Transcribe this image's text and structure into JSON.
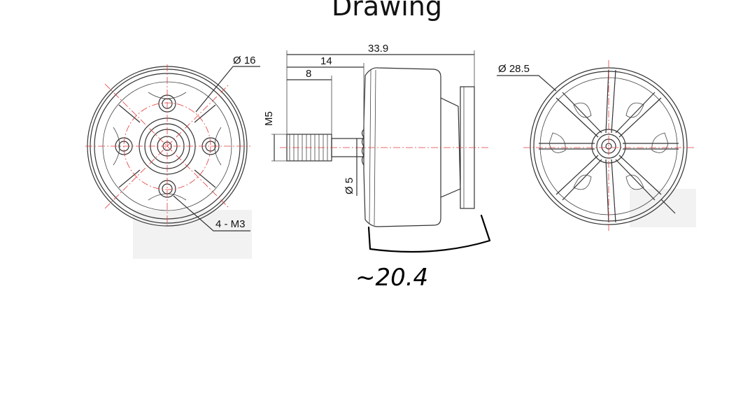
{
  "title": "Drawing",
  "labels": {
    "front_diameter": "Ø 16",
    "front_holes": "4 - M3",
    "overall_length": "33.9",
    "shaft_length": "14",
    "thread_length": "8",
    "thread_spec": "M5",
    "shaft_diameter": "Ø 5",
    "rear_diameter": "Ø 28.5"
  },
  "annotation": {
    "handwritten": "~20.4"
  }
}
